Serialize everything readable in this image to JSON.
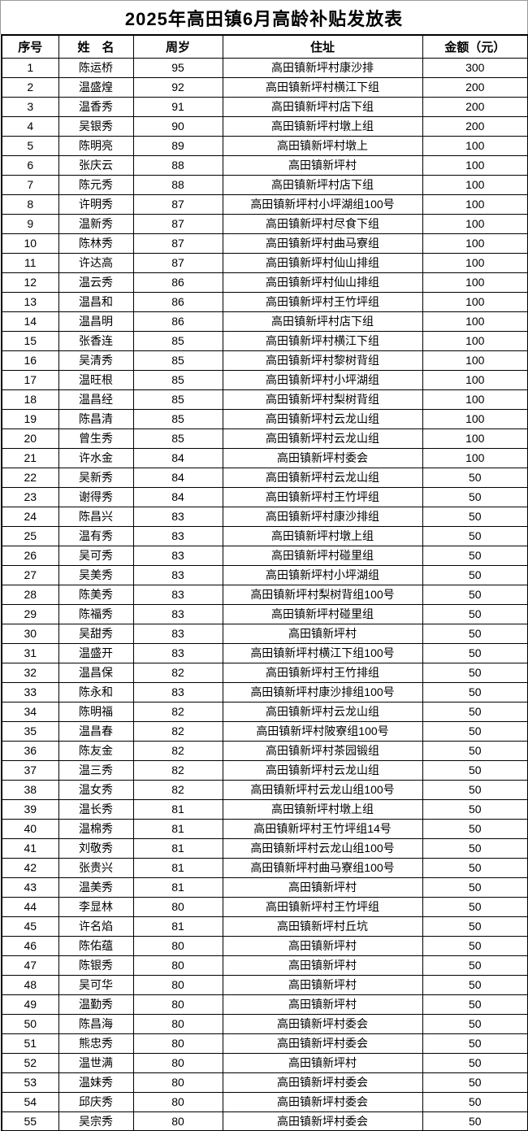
{
  "title": "2025年高田镇6月高龄补贴发放表",
  "table": {
    "columns": {
      "index": "序号",
      "name": "姓　名",
      "age": "周岁",
      "address": "住址",
      "amount": "金额（元）"
    },
    "rows": [
      {
        "index": "1",
        "name": "陈运桥",
        "age": "95",
        "address": "高田镇新坪村康沙排",
        "amount": "300"
      },
      {
        "index": "2",
        "name": "温盛煌",
        "age": "92",
        "address": "高田镇新坪村横江下组",
        "amount": "200"
      },
      {
        "index": "3",
        "name": "温香秀",
        "age": "91",
        "address": "高田镇新坪村店下组",
        "amount": "200"
      },
      {
        "index": "4",
        "name": "吴银秀",
        "age": "90",
        "address": "高田镇新坪村墩上组",
        "amount": "200"
      },
      {
        "index": "5",
        "name": "陈明亮",
        "age": "89",
        "address": "高田镇新坪村墩上",
        "amount": "100"
      },
      {
        "index": "6",
        "name": "张庆云",
        "age": "88",
        "address": "高田镇新坪村",
        "amount": "100"
      },
      {
        "index": "7",
        "name": "陈元秀",
        "age": "88",
        "address": "高田镇新坪村店下组",
        "amount": "100"
      },
      {
        "index": "8",
        "name": "许明秀",
        "age": "87",
        "address": "高田镇新坪村小坪湖组100号",
        "amount": "100"
      },
      {
        "index": "9",
        "name": "温新秀",
        "age": "87",
        "address": "高田镇新坪村尽食下组",
        "amount": "100"
      },
      {
        "index": "10",
        "name": "陈林秀",
        "age": "87",
        "address": "高田镇新坪村曲马寮组",
        "amount": "100"
      },
      {
        "index": "11",
        "name": "许达高",
        "age": "87",
        "address": "高田镇新坪村仙山排组",
        "amount": "100"
      },
      {
        "index": "12",
        "name": "温云秀",
        "age": "86",
        "address": "高田镇新坪村仙山排组",
        "amount": "100"
      },
      {
        "index": "13",
        "name": "温昌和",
        "age": "86",
        "address": "高田镇新坪村王竹坪组",
        "amount": "100"
      },
      {
        "index": "14",
        "name": "温昌明",
        "age": "86",
        "address": "高田镇新坪村店下组",
        "amount": "100"
      },
      {
        "index": "15",
        "name": "张香连",
        "age": "85",
        "address": "高田镇新坪村横江下组",
        "amount": "100"
      },
      {
        "index": "16",
        "name": "吴清秀",
        "age": "85",
        "address": "高田镇新坪村黎树背组",
        "amount": "100"
      },
      {
        "index": "17",
        "name": "温旺根",
        "age": "85",
        "address": "高田镇新坪村小坪湖组",
        "amount": "100"
      },
      {
        "index": "18",
        "name": "温昌经",
        "age": "85",
        "address": "高田镇新坪村梨树背组",
        "amount": "100"
      },
      {
        "index": "19",
        "name": "陈昌清",
        "age": "85",
        "address": "高田镇新坪村云龙山组",
        "amount": "100"
      },
      {
        "index": "20",
        "name": "曾生秀",
        "age": "85",
        "address": "高田镇新坪村云龙山组",
        "amount": "100"
      },
      {
        "index": "21",
        "name": "许水金",
        "age": "84",
        "address": "高田镇新坪村委会",
        "amount": "100"
      },
      {
        "index": "22",
        "name": "吴新秀",
        "age": "84",
        "address": "高田镇新坪村云龙山组",
        "amount": "50"
      },
      {
        "index": "23",
        "name": "谢得秀",
        "age": "84",
        "address": "高田镇新坪村王竹坪组",
        "amount": "50"
      },
      {
        "index": "24",
        "name": "陈昌兴",
        "age": "83",
        "address": "高田镇新坪村康沙排组",
        "amount": "50"
      },
      {
        "index": "25",
        "name": "温有秀",
        "age": "83",
        "address": "高田镇新坪村墩上组",
        "amount": "50"
      },
      {
        "index": "26",
        "name": "吴可秀",
        "age": "83",
        "address": "高田镇新坪村碰里组",
        "amount": "50"
      },
      {
        "index": "27",
        "name": "吴美秀",
        "age": "83",
        "address": "高田镇新坪村小坪湖组",
        "amount": "50"
      },
      {
        "index": "28",
        "name": "陈美秀",
        "age": "83",
        "address": "高田镇新坪村梨树背组100号",
        "amount": "50"
      },
      {
        "index": "29",
        "name": "陈福秀",
        "age": "83",
        "address": "高田镇新坪村碰里组",
        "amount": "50"
      },
      {
        "index": "30",
        "name": "吴甜秀",
        "age": "83",
        "address": "高田镇新坪村",
        "amount": "50"
      },
      {
        "index": "31",
        "name": "温盛开",
        "age": "83",
        "address": "高田镇新坪村横江下组100号",
        "amount": "50"
      },
      {
        "index": "32",
        "name": "温昌保",
        "age": "82",
        "address": "高田镇新坪村王竹排组",
        "amount": "50"
      },
      {
        "index": "33",
        "name": "陈永和",
        "age": "83",
        "address": "高田镇新坪村康沙排组100号",
        "amount": "50"
      },
      {
        "index": "34",
        "name": "陈明福",
        "age": "82",
        "address": "高田镇新坪村云龙山组",
        "amount": "50"
      },
      {
        "index": "35",
        "name": "温昌春",
        "age": "82",
        "address": "高田镇新坪村陂寮组100号",
        "amount": "50"
      },
      {
        "index": "36",
        "name": "陈友金",
        "age": "82",
        "address": "高田镇新坪村茶园锻组",
        "amount": "50"
      },
      {
        "index": "37",
        "name": "温三秀",
        "age": "82",
        "address": "高田镇新坪村云龙山组",
        "amount": "50"
      },
      {
        "index": "38",
        "name": "温女秀",
        "age": "82",
        "address": "高田镇新坪村云龙山组100号",
        "amount": "50"
      },
      {
        "index": "39",
        "name": "温长秀",
        "age": "81",
        "address": "高田镇新坪村墩上组",
        "amount": "50"
      },
      {
        "index": "40",
        "name": "温棉秀",
        "age": "81",
        "address": "高田镇新坪村王竹坪组14号",
        "amount": "50"
      },
      {
        "index": "41",
        "name": "刘敬秀",
        "age": "81",
        "address": "高田镇新坪村云龙山组100号",
        "amount": "50"
      },
      {
        "index": "42",
        "name": "张贵兴",
        "age": "81",
        "address": "高田镇新坪村曲马寮组100号",
        "amount": "50"
      },
      {
        "index": "43",
        "name": "温美秀",
        "age": "81",
        "address": "高田镇新坪村",
        "amount": "50"
      },
      {
        "index": "44",
        "name": "李显林",
        "age": "80",
        "address": "高田镇新坪村王竹坪组",
        "amount": "50"
      },
      {
        "index": "45",
        "name": "许名焰",
        "age": "81",
        "address": "高田镇新坪村丘坑",
        "amount": "50"
      },
      {
        "index": "46",
        "name": "陈佑蕴",
        "age": "80",
        "address": "高田镇新坪村",
        "amount": "50"
      },
      {
        "index": "47",
        "name": "陈银秀",
        "age": "80",
        "address": "高田镇新坪村",
        "amount": "50"
      },
      {
        "index": "48",
        "name": "吴可华",
        "age": "80",
        "address": "高田镇新坪村",
        "amount": "50"
      },
      {
        "index": "49",
        "name": "温勤秀",
        "age": "80",
        "address": "高田镇新坪村",
        "amount": "50"
      },
      {
        "index": "50",
        "name": "陈昌海",
        "age": "80",
        "address": "高田镇新坪村委会",
        "amount": "50"
      },
      {
        "index": "51",
        "name": "熊忠秀",
        "age": "80",
        "address": "高田镇新坪村委会",
        "amount": "50"
      },
      {
        "index": "52",
        "name": "温世满",
        "age": "80",
        "address": "高田镇新坪村",
        "amount": "50"
      },
      {
        "index": "53",
        "name": "温妹秀",
        "age": "80",
        "address": "高田镇新坪村委会",
        "amount": "50"
      },
      {
        "index": "54",
        "name": "邱庆秀",
        "age": "80",
        "address": "高田镇新坪村委会",
        "amount": "50"
      },
      {
        "index": "55",
        "name": "吴宗秀",
        "age": "80",
        "address": "高田镇新坪村委会",
        "amount": "50"
      }
    ]
  }
}
